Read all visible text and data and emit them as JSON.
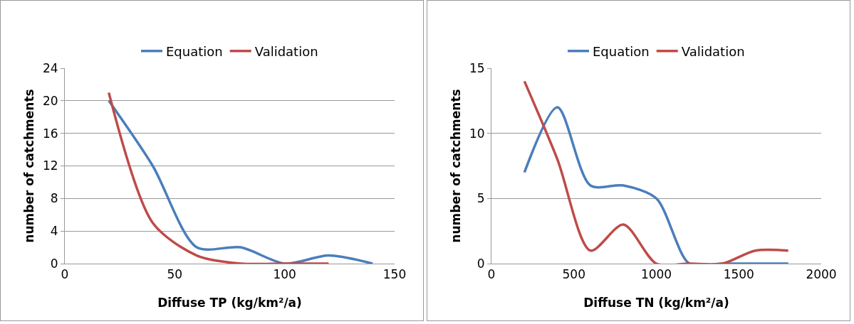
{
  "chart_data": [
    {
      "type": "line",
      "xlabel": "Diffuse TP (kg/km²/a)",
      "ylabel": "number of catchments",
      "x": [
        20,
        40,
        60,
        80,
        100,
        120,
        140
      ],
      "series": [
        {
          "name": "Equation",
          "color": "#4a7ebb",
          "values": [
            20,
            12,
            2,
            2,
            0,
            1,
            0
          ]
        },
        {
          "name": "Validation",
          "color": "#be4b48",
          "x": [
            20,
            40,
            60,
            80,
            100,
            120
          ],
          "values": [
            21,
            5,
            1,
            0,
            0,
            0
          ]
        }
      ],
      "xlim": [
        0,
        150
      ],
      "xticks": [
        0,
        50,
        100,
        150
      ],
      "ylim": [
        0,
        24
      ],
      "yticks": [
        0,
        4,
        8,
        12,
        16,
        20,
        24
      ],
      "grid": "y",
      "legend": "top",
      "marker": "none",
      "line_style": "solid"
    },
    {
      "type": "line",
      "xlabel": "Diffuse TN (kg/km²/a)",
      "ylabel": "number of catchments",
      "x": [
        200,
        400,
        600,
        800,
        1000,
        1200,
        1400,
        1600,
        1800
      ],
      "series": [
        {
          "name": "Equation",
          "color": "#4a7ebb",
          "values": [
            7,
            12,
            6,
            6,
            5,
            0,
            0,
            0,
            0
          ]
        },
        {
          "name": "Validation",
          "color": "#be4b48",
          "values": [
            14,
            8,
            1,
            3,
            0,
            0,
            0,
            1,
            1
          ]
        }
      ],
      "xlim": [
        0,
        2000
      ],
      "xticks": [
        0,
        500,
        1000,
        1500,
        2000
      ],
      "ylim": [
        0,
        15
      ],
      "yticks": [
        0,
        5,
        10,
        15
      ],
      "grid": "y",
      "legend": "top",
      "marker": "none",
      "line_style": "solid"
    }
  ]
}
